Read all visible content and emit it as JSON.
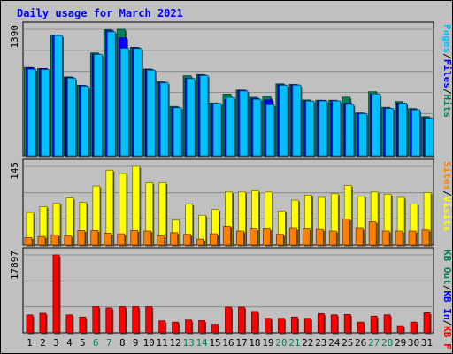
{
  "title": "Daily usage for March 2021",
  "chart_data": {
    "type": "bar",
    "title": "Daily usage for March 2021",
    "categories": [
      "1",
      "2",
      "3",
      "4",
      "5",
      "6",
      "7",
      "8",
      "9",
      "10",
      "11",
      "12",
      "13",
      "14",
      "15",
      "16",
      "17",
      "18",
      "19",
      "20",
      "21",
      "22",
      "23",
      "24",
      "25",
      "26",
      "27",
      "28",
      "29",
      "30",
      "31"
    ],
    "weekend_days": [
      "6",
      "7",
      "13",
      "14",
      "20",
      "21",
      "27",
      "28"
    ],
    "colors": {
      "hits": "#00805c",
      "files": "#0000ff",
      "pages": "#00c0ff",
      "visits": "#ffff00",
      "sites": "#ff8000",
      "kb_in": "#0000ff",
      "kb_out": "#00805c",
      "kb_f": "#ff0000",
      "weekday_label": "#000000",
      "weekend_label": "#00805c",
      "title": "#0000ff",
      "background": "#c0c0c0"
    },
    "panels": [
      {
        "name": "hits_files_pages",
        "max_label": "1390",
        "ylim": [
          0,
          1390
        ],
        "legend": [
          {
            "text": "Hits",
            "color": "#00805c"
          },
          {
            "text": "Files",
            "color": "#0000ff"
          },
          {
            "text": "Pages",
            "color": "#00c0ff"
          }
        ],
        "series": [
          {
            "name": "Hits",
            "values": [
              970,
              958,
              1328,
              866,
              774,
              1130,
              1387,
              1390,
              1192,
              953,
              811,
              542,
              878,
              891,
              580,
              676,
              721,
              642,
              651,
              789,
              783,
              613,
              610,
              610,
              643,
              470,
              702,
              532,
              595,
              518,
              429
            ]
          },
          {
            "name": "Files",
            "values": [
              966,
              958,
              1324,
              859,
              768,
              1117,
              1374,
              1295,
              1186,
              947,
              806,
              532,
              850,
              885,
              574,
              617,
              720,
              629,
              613,
              778,
              778,
              602,
              609,
              604,
              575,
              465,
              678,
              522,
              580,
              508,
              416
            ]
          },
          {
            "name": "Pages",
            "values": [
              950,
              946,
              1320,
              852,
              763,
              1113,
              1361,
              1180,
              1178,
              940,
              800,
              527,
              848,
              880,
              574,
              640,
              710,
              620,
              560,
              773,
              775,
              600,
              602,
              602,
              564,
              460,
              678,
              519,
              577,
              504,
              412
            ]
          }
        ]
      },
      {
        "name": "visits_sites",
        "max_label": "145",
        "ylim": [
          0,
          145
        ],
        "legend": [
          {
            "text": "Visits",
            "color": "#ffff00"
          },
          {
            "text": "Sites",
            "color": "#ff8000"
          }
        ],
        "series": [
          {
            "name": "Visits",
            "values": [
              60,
              71,
              77,
              87,
              79,
              109,
              138,
              132,
              145,
              115,
              115,
              46,
              76,
              55,
              66,
              98,
              98,
              100,
              98,
              63,
              83,
              92,
              88,
              95,
              110,
              90,
              98,
              94,
              88,
              76,
              97
            ]
          },
          {
            "name": "Sites",
            "values": [
              14,
              16,
              19,
              17,
              27,
              27,
              22,
              21,
              27,
              26,
              17,
              23,
              20,
              11,
              21,
              35,
              26,
              30,
              30,
              20,
              31,
              30,
              29,
              26,
              48,
              31,
              43,
              26,
              26,
              26,
              28
            ]
          }
        ]
      },
      {
        "name": "kbytes",
        "max_label": "17897",
        "ylim": [
          0,
          17897
        ],
        "legend": [
          {
            "text": "KB F",
            "color": "#ff0000"
          },
          {
            "text": "KB In",
            "color": "#0000ff"
          },
          {
            "text": "KB Out",
            "color": "#00805c"
          }
        ],
        "series": [
          {
            "name": "KB F",
            "values": [
              4100,
              4470,
              17897,
              4100,
              3600,
              6000,
              5700,
              6000,
              5990,
              5990,
              2700,
              2400,
              2900,
              2750,
              1900,
              5900,
              5900,
              4900,
              3300,
              3300,
              3600,
              3300,
              4400,
              4100,
              4200,
              2400,
              3800,
              4100,
              1600,
              2400,
              4600
            ]
          }
        ]
      }
    ]
  }
}
